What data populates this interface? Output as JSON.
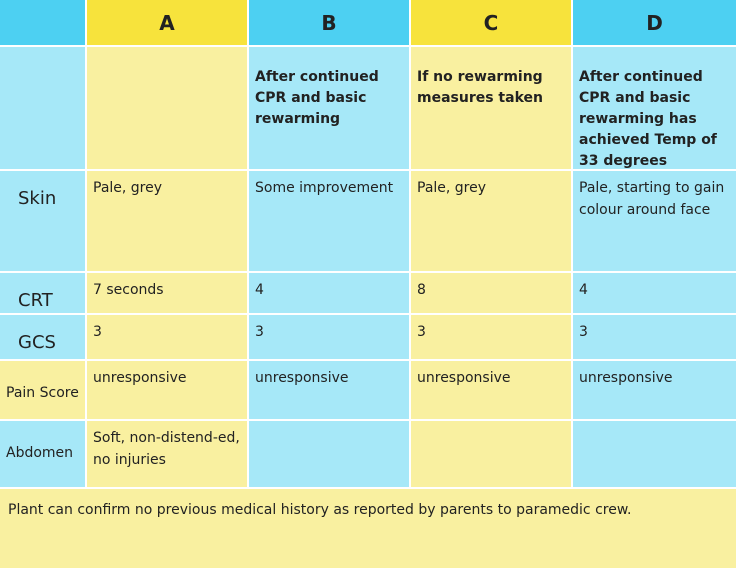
{
  "table": {
    "columns": [
      "A",
      "B",
      "C",
      "D"
    ],
    "rows": [
      {
        "label": null,
        "cells": [
          null,
          "After continued CPR and basic rewarming",
          "If no rewarming measures taken",
          "After continued CPR and basic rewarming has achieved Temp of 33 degrees"
        ]
      },
      {
        "label": "Skin",
        "cells": [
          "Pale, grey",
          "Some improvement",
          "Pale, grey",
          "Pale, starting to gain colour around face"
        ]
      },
      {
        "label": "CRT",
        "cells": [
          "7 seconds",
          "4",
          "8",
          "4"
        ]
      },
      {
        "label": "GCS",
        "cells": [
          "3",
          "3",
          "3",
          "3"
        ]
      },
      {
        "label": "Pain Score",
        "cells": [
          "unresponsive",
          "unresponsive",
          "unresponsive",
          "unresponsive"
        ]
      },
      {
        "label": "Abdomen",
        "cells": [
          "Soft, non-distend-ed, no injuries",
          null,
          null,
          null
        ]
      }
    ],
    "footer": "Plant can confirm no previous medical history as reported by parents to paramedic crew."
  }
}
